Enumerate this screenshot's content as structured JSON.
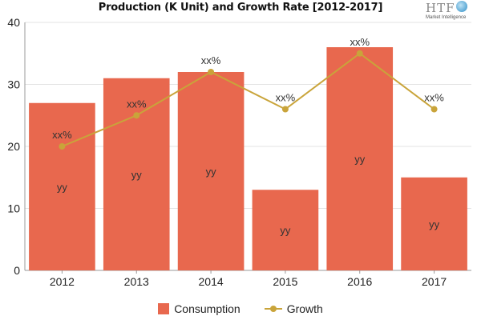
{
  "chart_data": {
    "type": "bar",
    "title": "Production (K Unit) and Growth Rate [2012-2017]",
    "categories": [
      "2012",
      "2013",
      "2014",
      "2015",
      "2016",
      "2017"
    ],
    "ylim": [
      0,
      40
    ],
    "yticks": [
      0,
      10,
      20,
      30,
      40
    ],
    "grid": true,
    "legend_position": "bottom-center",
    "series": [
      {
        "name": "Consumption",
        "type": "bar",
        "color": "#e8684e",
        "values": [
          27,
          31,
          32,
          13,
          36,
          15
        ],
        "data_labels": [
          "yy",
          "yy",
          "yy",
          "yy",
          "yy",
          "yy"
        ],
        "label_values": [
          13.5,
          15.5,
          16,
          6.5,
          18,
          7.5
        ]
      },
      {
        "name": "Growth",
        "type": "line",
        "color": "#c9a43a",
        "values": [
          20,
          25,
          32,
          26,
          35,
          26
        ],
        "data_labels": [
          "xx%",
          "xx%",
          "xx%",
          "xx%",
          "xx%",
          "xx%"
        ]
      }
    ]
  },
  "logo": {
    "text": "HTF",
    "subtext": "Market Intelligence"
  }
}
